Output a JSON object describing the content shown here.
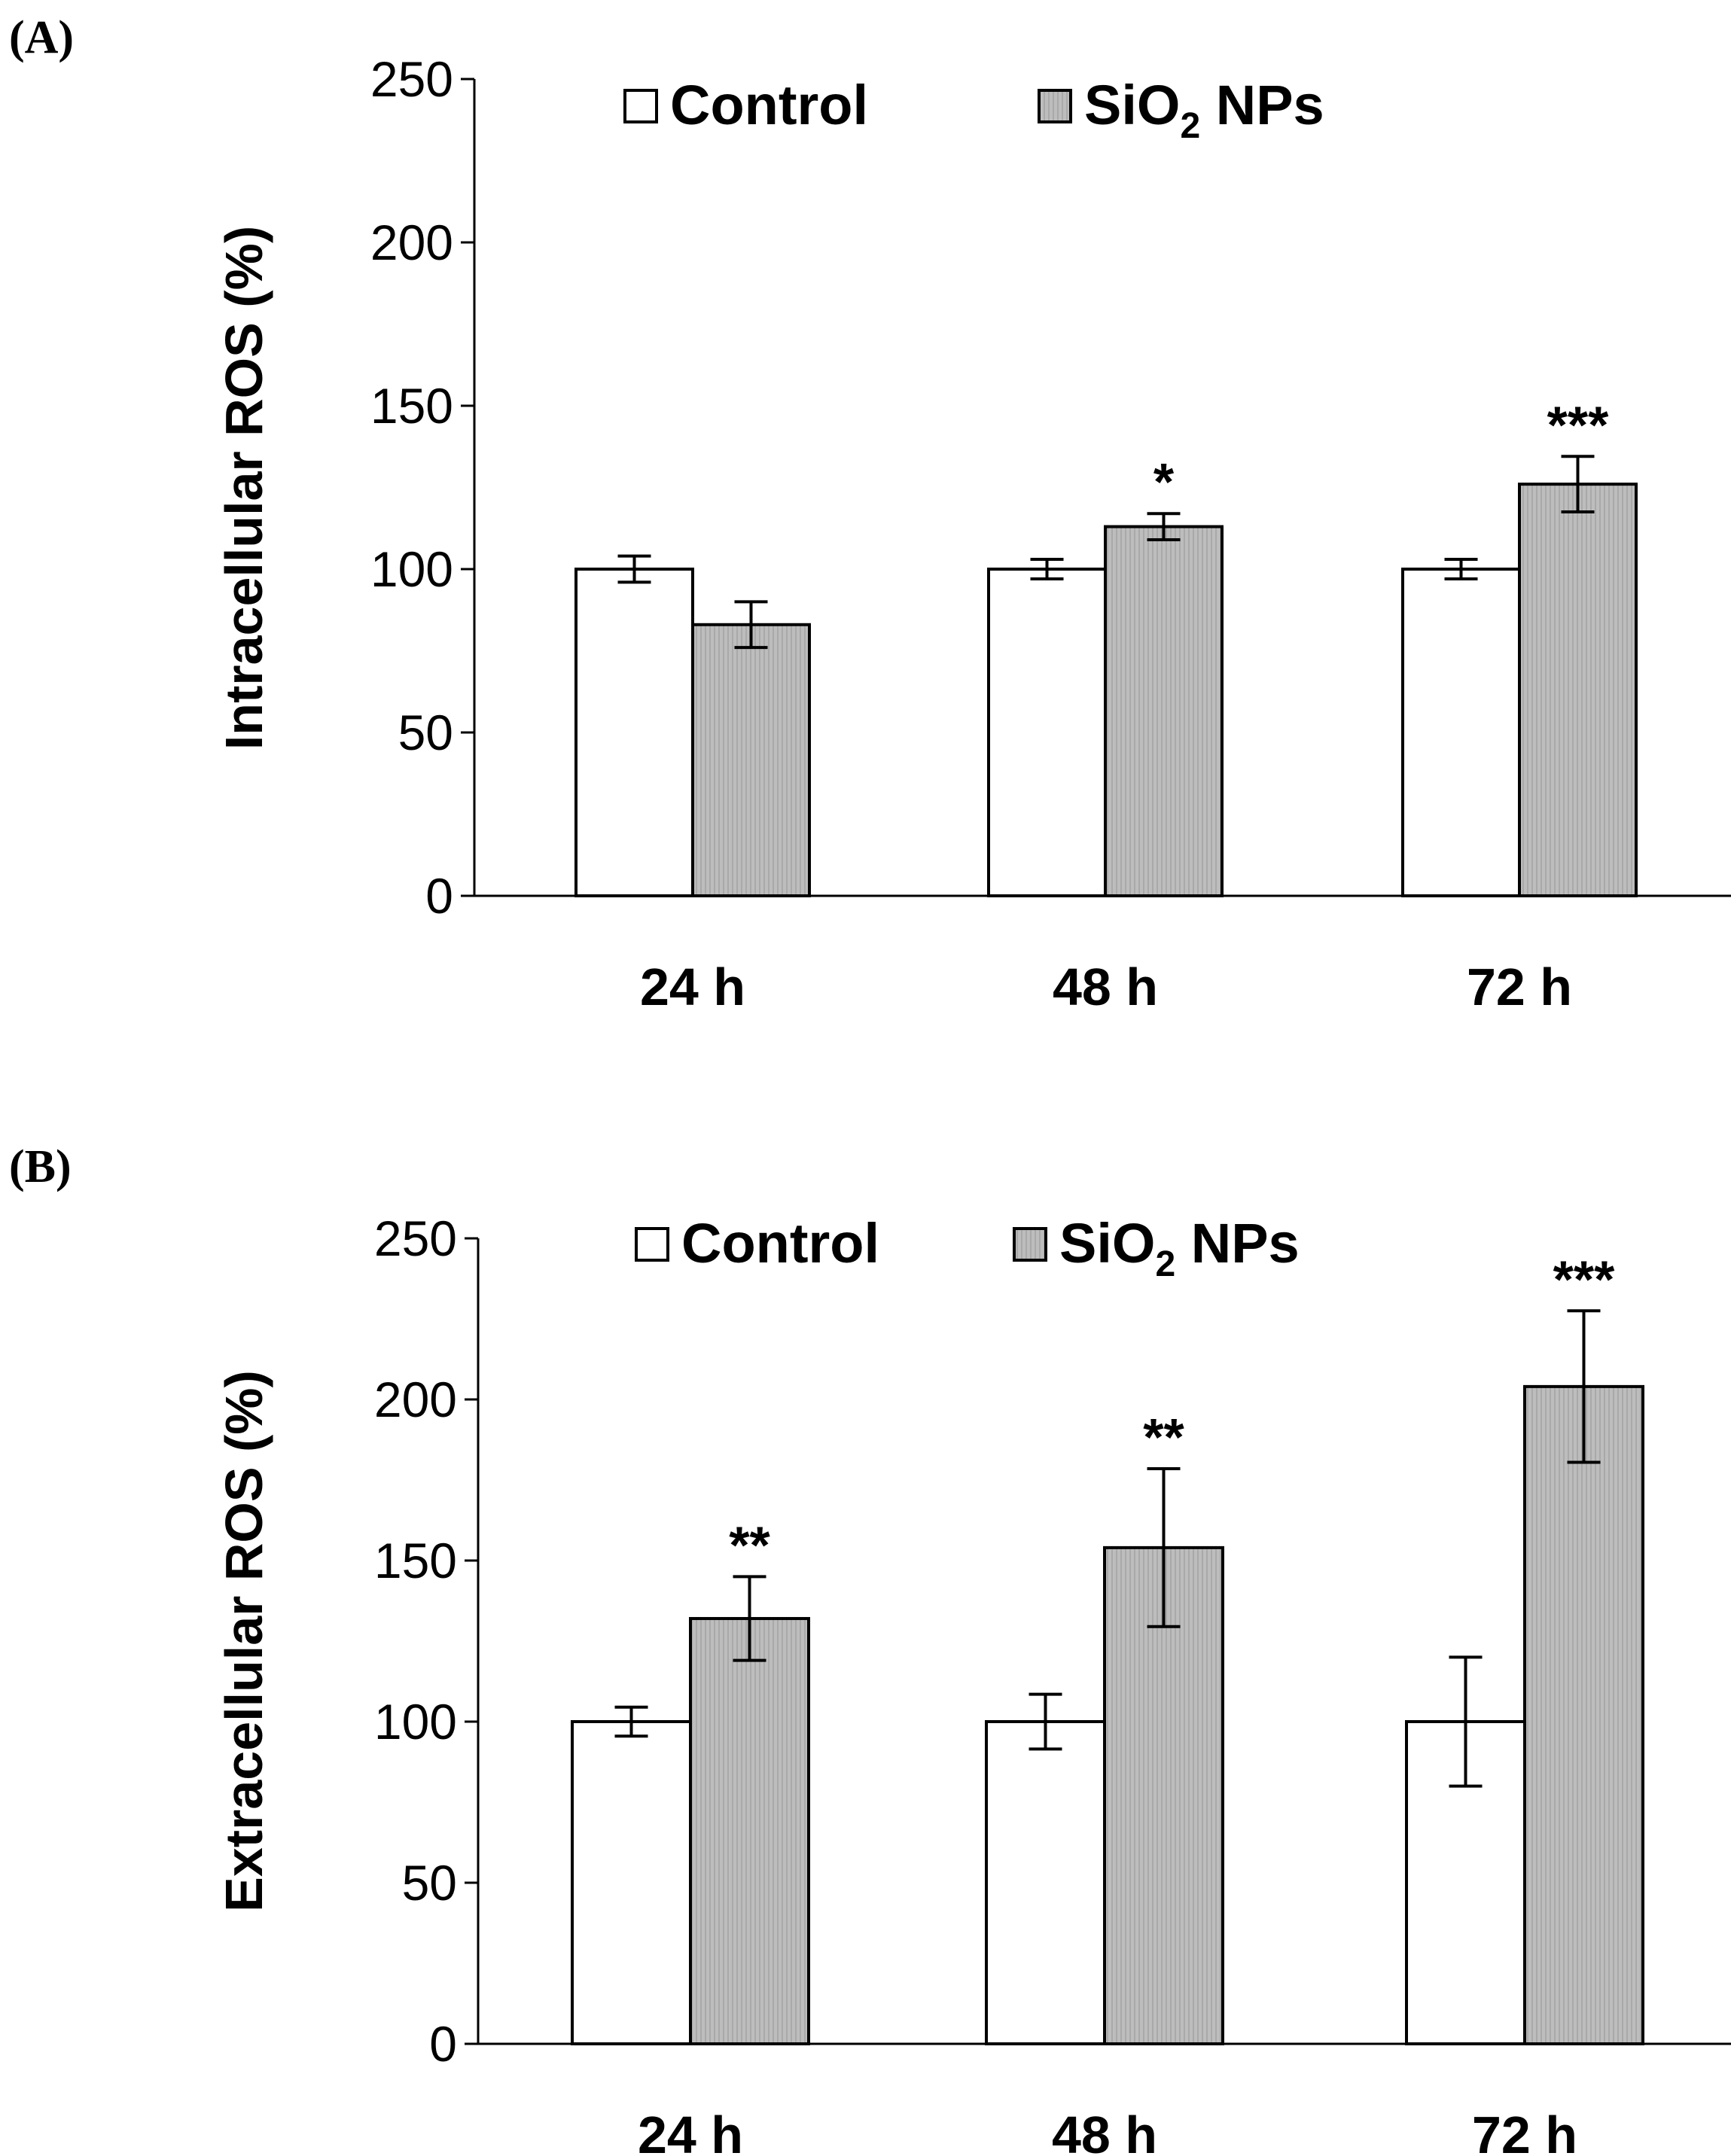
{
  "chart_data": [
    {
      "panel_label": "(A)",
      "type": "bar",
      "ylabel": "Intracellular ROS (%)",
      "ylim": [
        0,
        250
      ],
      "yticks": [
        "0",
        "50",
        "100",
        "150",
        "200",
        "250"
      ],
      "categories": [
        "24 h",
        "48 h",
        "72 h"
      ],
      "legend": {
        "position": "top",
        "control_label": "Control",
        "np_label": "SiO",
        "np_subscript": "2",
        "np_suffix": " NPs"
      },
      "series": [
        {
          "name": "Control",
          "color": "#ffffff",
          "values": [
            100,
            100,
            100
          ],
          "errors": [
            4,
            3,
            3
          ],
          "significance": [
            "",
            "",
            ""
          ]
        },
        {
          "name": "SiO2 NPs",
          "color": "#bdbdbd",
          "values": [
            83,
            113,
            126
          ],
          "errors": [
            7,
            4,
            8.5
          ],
          "significance": [
            "",
            "*",
            "***"
          ]
        }
      ]
    },
    {
      "panel_label": "(B)",
      "type": "bar",
      "ylabel": "Extracellular ROS (%)",
      "ylim": [
        0,
        250
      ],
      "yticks": [
        "0",
        "50",
        "100",
        "150",
        "200",
        "250"
      ],
      "categories": [
        "24 h",
        "48 h",
        "72 h"
      ],
      "legend": {
        "position": "top",
        "control_label": "Control",
        "np_label": "SiO",
        "np_subscript": "2",
        "np_suffix": " NPs"
      },
      "series": [
        {
          "name": "Control",
          "color": "#ffffff",
          "values": [
            100,
            100,
            100
          ],
          "errors": [
            4.5,
            8.5,
            20
          ],
          "significance": [
            "",
            "",
            ""
          ]
        },
        {
          "name": "SiO2 NPs",
          "color": "#bdbdbd",
          "values": [
            132,
            154,
            204
          ],
          "errors": [
            13,
            24.5,
            23.5
          ],
          "significance": [
            "**",
            "**",
            "***"
          ]
        }
      ]
    }
  ]
}
